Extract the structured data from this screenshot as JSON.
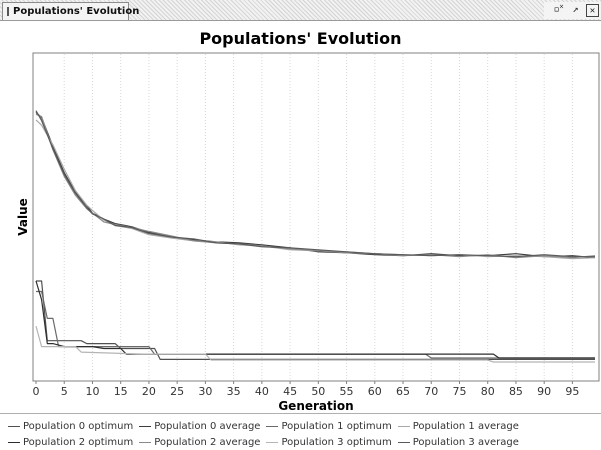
{
  "window": {
    "tab_title": "Populations' Evolution",
    "controls": {
      "minimize_icon": "minimize-icon",
      "maximize_icon": "maximize-icon",
      "close_icon": "close-icon",
      "minimize_glyph": "▫˟",
      "maximize_glyph": "↗",
      "close_glyph": "✕"
    }
  },
  "chart_data": {
    "type": "line",
    "title": "Populations' Evolution",
    "xlabel": "Generation",
    "ylabel": "Value",
    "xlim": [
      0,
      99
    ],
    "ylim": [
      0,
      100
    ],
    "x_ticks": [
      0,
      5,
      10,
      15,
      20,
      25,
      30,
      35,
      40,
      45,
      50,
      55,
      60,
      65,
      70,
      75,
      80,
      85,
      90,
      95
    ],
    "y_ticks_visible": false,
    "vertical_grid": true,
    "legend_position": "bottom",
    "series": [
      {
        "name": "Population 0 optimum",
        "color": "#505050",
        "points": [
          [
            0,
            30.5
          ],
          [
            1,
            30.5
          ],
          [
            2,
            12.3
          ],
          [
            3,
            12.3
          ],
          [
            8,
            12.3
          ],
          [
            9,
            11.4
          ],
          [
            14,
            11.4
          ],
          [
            15,
            9.9
          ],
          [
            21,
            9.9
          ],
          [
            22,
            6.6
          ],
          [
            95,
            6.6
          ],
          [
            99,
            6.6
          ]
        ]
      },
      {
        "name": "Population 0 average",
        "color": "#3c3c3c",
        "points": [
          [
            0,
            81.9
          ],
          [
            1,
            80.3
          ],
          [
            3,
            71.6
          ],
          [
            5,
            63.5
          ],
          [
            7,
            57.5
          ],
          [
            9,
            53.4
          ],
          [
            10,
            51.2
          ],
          [
            12,
            49.4
          ],
          [
            14,
            48.0
          ],
          [
            17,
            47.0
          ],
          [
            20,
            45.3
          ],
          [
            24,
            43.9
          ],
          [
            28,
            43.0
          ],
          [
            32,
            42.4
          ],
          [
            36,
            42.1
          ],
          [
            40,
            41.5
          ],
          [
            45,
            40.6
          ],
          [
            50,
            39.4
          ],
          [
            55,
            39.1
          ],
          [
            60,
            38.5
          ],
          [
            65,
            38.2
          ],
          [
            70,
            38.8
          ],
          [
            75,
            38.2
          ],
          [
            80,
            38.2
          ],
          [
            85,
            38.8
          ],
          [
            90,
            37.9
          ],
          [
            95,
            38.2
          ],
          [
            99,
            37.6
          ]
        ]
      },
      {
        "name": "Population 1 optimum",
        "color": "#6a6a6a",
        "points": [
          [
            0,
            27.3
          ],
          [
            1,
            27.3
          ],
          [
            2,
            19.1
          ],
          [
            3,
            19.1
          ],
          [
            4,
            10.5
          ],
          [
            20,
            10.5
          ],
          [
            21,
            8.2
          ],
          [
            69,
            8.2
          ],
          [
            70,
            7.0
          ],
          [
            99,
            7.0
          ]
        ]
      },
      {
        "name": "Population 1 average",
        "color": "#a8a8a8",
        "points": [
          [
            0,
            79.6
          ],
          [
            1,
            78.0
          ],
          [
            3,
            72.0
          ],
          [
            5,
            64.6
          ],
          [
            7,
            58.0
          ],
          [
            9,
            53.6
          ],
          [
            10,
            52.0
          ],
          [
            12,
            49.1
          ],
          [
            14,
            47.4
          ],
          [
            17,
            46.5
          ],
          [
            20,
            44.6
          ],
          [
            24,
            43.6
          ],
          [
            28,
            42.7
          ],
          [
            32,
            42.4
          ],
          [
            36,
            41.5
          ],
          [
            40,
            41.2
          ],
          [
            45,
            40.0
          ],
          [
            50,
            39.7
          ],
          [
            55,
            39.4
          ],
          [
            60,
            38.8
          ],
          [
            65,
            38.5
          ],
          [
            70,
            38.2
          ],
          [
            75,
            38.5
          ],
          [
            80,
            37.9
          ],
          [
            85,
            38.2
          ],
          [
            90,
            37.9
          ],
          [
            95,
            37.3
          ],
          [
            99,
            37.6
          ]
        ]
      },
      {
        "name": "Population 2 optimum",
        "color": "#2e2e2e",
        "points": [
          [
            0,
            30.5
          ],
          [
            1,
            24.8
          ],
          [
            2,
            11.4
          ],
          [
            3,
            11.4
          ],
          [
            5,
            10.5
          ],
          [
            10,
            10.5
          ],
          [
            12,
            9.9
          ],
          [
            15,
            9.9
          ],
          [
            16,
            8.2
          ],
          [
            81,
            8.2
          ],
          [
            82,
            7.0
          ],
          [
            99,
            7.0
          ]
        ]
      },
      {
        "name": "Population 2 average",
        "color": "#8a8a8a",
        "points": [
          [
            0,
            81.3
          ],
          [
            1,
            80.6
          ],
          [
            3,
            70.5
          ],
          [
            5,
            62.4
          ],
          [
            7,
            56.6
          ],
          [
            9,
            52.5
          ],
          [
            10,
            51.2
          ],
          [
            12,
            48.5
          ],
          [
            14,
            47.7
          ],
          [
            17,
            46.8
          ],
          [
            20,
            45.6
          ],
          [
            24,
            44.2
          ],
          [
            28,
            42.7
          ],
          [
            32,
            42.1
          ],
          [
            36,
            41.8
          ],
          [
            40,
            41.2
          ],
          [
            45,
            40.3
          ],
          [
            50,
            39.7
          ],
          [
            55,
            39.1
          ],
          [
            60,
            38.8
          ],
          [
            65,
            38.2
          ],
          [
            70,
            38.5
          ],
          [
            75,
            37.9
          ],
          [
            80,
            38.5
          ],
          [
            85,
            37.6
          ],
          [
            90,
            38.2
          ],
          [
            95,
            37.6
          ],
          [
            99,
            38.2
          ]
        ]
      },
      {
        "name": "Population 3 optimum",
        "color": "#b4b4b4",
        "points": [
          [
            0,
            16.7
          ],
          [
            1,
            10.5
          ],
          [
            7,
            10.5
          ],
          [
            8,
            8.8
          ],
          [
            19,
            8.2
          ],
          [
            30,
            8.2
          ],
          [
            31,
            6.4
          ],
          [
            80,
            6.4
          ],
          [
            81,
            5.8
          ],
          [
            99,
            5.8
          ]
        ]
      },
      {
        "name": "Population 3 average",
        "color": "#5a5a5a",
        "points": [
          [
            0,
            82.4
          ],
          [
            1,
            79.4
          ],
          [
            3,
            70.8
          ],
          [
            5,
            63.0
          ],
          [
            7,
            57.2
          ],
          [
            9,
            52.8
          ],
          [
            10,
            50.9
          ],
          [
            12,
            49.4
          ],
          [
            14,
            47.4
          ],
          [
            17,
            46.8
          ],
          [
            20,
            45.0
          ],
          [
            24,
            43.9
          ],
          [
            28,
            43.3
          ],
          [
            32,
            42.1
          ],
          [
            36,
            41.8
          ],
          [
            40,
            40.9
          ],
          [
            45,
            40.6
          ],
          [
            50,
            40.0
          ],
          [
            55,
            39.4
          ],
          [
            60,
            38.8
          ],
          [
            65,
            38.5
          ],
          [
            70,
            38.2
          ],
          [
            75,
            38.5
          ],
          [
            80,
            38.2
          ],
          [
            85,
            37.9
          ],
          [
            90,
            38.5
          ],
          [
            95,
            37.9
          ],
          [
            99,
            37.9
          ]
        ]
      }
    ]
  }
}
